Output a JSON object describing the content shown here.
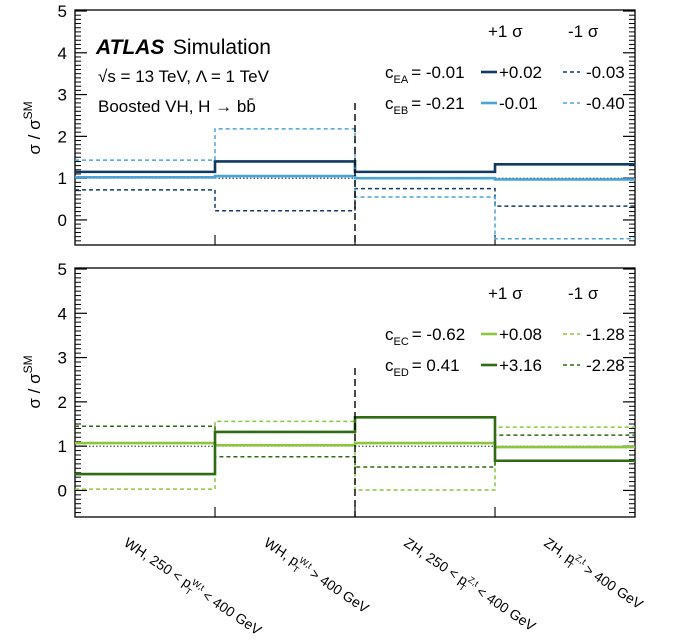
{
  "header": {
    "experiment": "ATLAS",
    "label": "Simulation",
    "energy": "√s = 13 TeV, Λ = 1 TeV",
    "analysis": "Boosted VH, H → bb̄"
  },
  "colors": {
    "dark_blue": "#0e3a63",
    "light_blue": "#4aa3d8",
    "light_green": "#8cc63f",
    "dark_green": "#2e6b12"
  },
  "chart_data": [
    {
      "type": "line",
      "panel": "top",
      "ylabel_text": "σ / σ",
      "ylabel_sup": "SM",
      "ylim": [
        -0.6,
        5
      ],
      "yticks": [
        "0",
        "1",
        "2",
        "3",
        "4",
        "5"
      ],
      "categories": [
        "WH, 250 < p_T^{W,t} < 400 GeV",
        "WH, p_T^{W,t} > 400 GeV",
        "ZH, 250 < p_T^{Z,t} < 400 GeV",
        "ZH, p_T^{Z,t} > 400 GeV"
      ],
      "legend_col_plus": "+1 σ",
      "legend_col_minus": "-1 σ",
      "legend_rows": [
        {
          "name_main": "c",
          "name_sub": "EA",
          "value": "= -0.01",
          "plus": "+0.02",
          "minus": "-0.03"
        },
        {
          "name_main": "c",
          "name_sub": "EB",
          "value": "= -0.21",
          "plus": "-0.01",
          "minus": "-0.40"
        }
      ],
      "series": [
        {
          "name": "c_EA +1σ",
          "color": "#0e3a63",
          "style": "solid",
          "values": [
            1.15,
            1.4,
            1.15,
            1.33
          ]
        },
        {
          "name": "c_EA -1σ",
          "color": "#0e3a63",
          "style": "dashed",
          "values": [
            0.72,
            0.22,
            0.75,
            0.33
          ]
        },
        {
          "name": "c_EB +1σ",
          "color": "#4aa3d8",
          "style": "solid",
          "values": [
            1.02,
            1.05,
            1.0,
            0.97
          ]
        },
        {
          "name": "c_EB -1σ",
          "color": "#4aa3d8",
          "style": "dashed",
          "values": [
            1.43,
            2.18,
            0.55,
            -0.45
          ]
        }
      ],
      "reference_line": 1
    },
    {
      "type": "line",
      "panel": "bottom",
      "ylabel_text": "σ / σ",
      "ylabel_sup": "SM",
      "ylim": [
        -0.6,
        5
      ],
      "yticks": [
        "0",
        "1",
        "2",
        "3",
        "4",
        "5"
      ],
      "legend_col_plus": "+1 σ",
      "legend_col_minus": "-1 σ",
      "legend_rows": [
        {
          "name_main": "c",
          "name_sub": "EC",
          "value": "= -0.62",
          "plus": "+0.08",
          "minus": "-1.28"
        },
        {
          "name_main": "c",
          "name_sub": "ED",
          "value": "= 0.41",
          "plus": "+3.16",
          "minus": "-2.28"
        }
      ],
      "series": [
        {
          "name": "c_EC +1σ",
          "color": "#8cc63f",
          "style": "solid",
          "values": [
            1.07,
            1.02,
            1.07,
            0.98
          ]
        },
        {
          "name": "c_EC -1σ",
          "color": "#8cc63f",
          "style": "dashed",
          "values": [
            0.03,
            1.56,
            0.01,
            1.43
          ]
        },
        {
          "name": "c_ED +1σ",
          "color": "#2e6b12",
          "style": "solid",
          "values": [
            0.37,
            1.32,
            1.65,
            0.67
          ]
        },
        {
          "name": "c_ED -1σ",
          "color": "#2e6b12",
          "style": "dashed",
          "values": [
            1.45,
            0.76,
            0.53,
            1.25
          ]
        }
      ],
      "reference_line": 1
    }
  ],
  "x_categories": [
    {
      "pre": "WH, 250 < p",
      "sub": "T",
      "sup": "W,t",
      "post": " < 400 GeV"
    },
    {
      "pre": "WH, p",
      "sub": "T",
      "sup": "W,t",
      "post": " > 400 GeV"
    },
    {
      "pre": "ZH, 250 < p",
      "sub": "T",
      "sup": "Z,t",
      "post": " < 400 GeV"
    },
    {
      "pre": "ZH, p",
      "sub": "T",
      "sup": "Z,t",
      "post": " > 400 GeV"
    }
  ]
}
